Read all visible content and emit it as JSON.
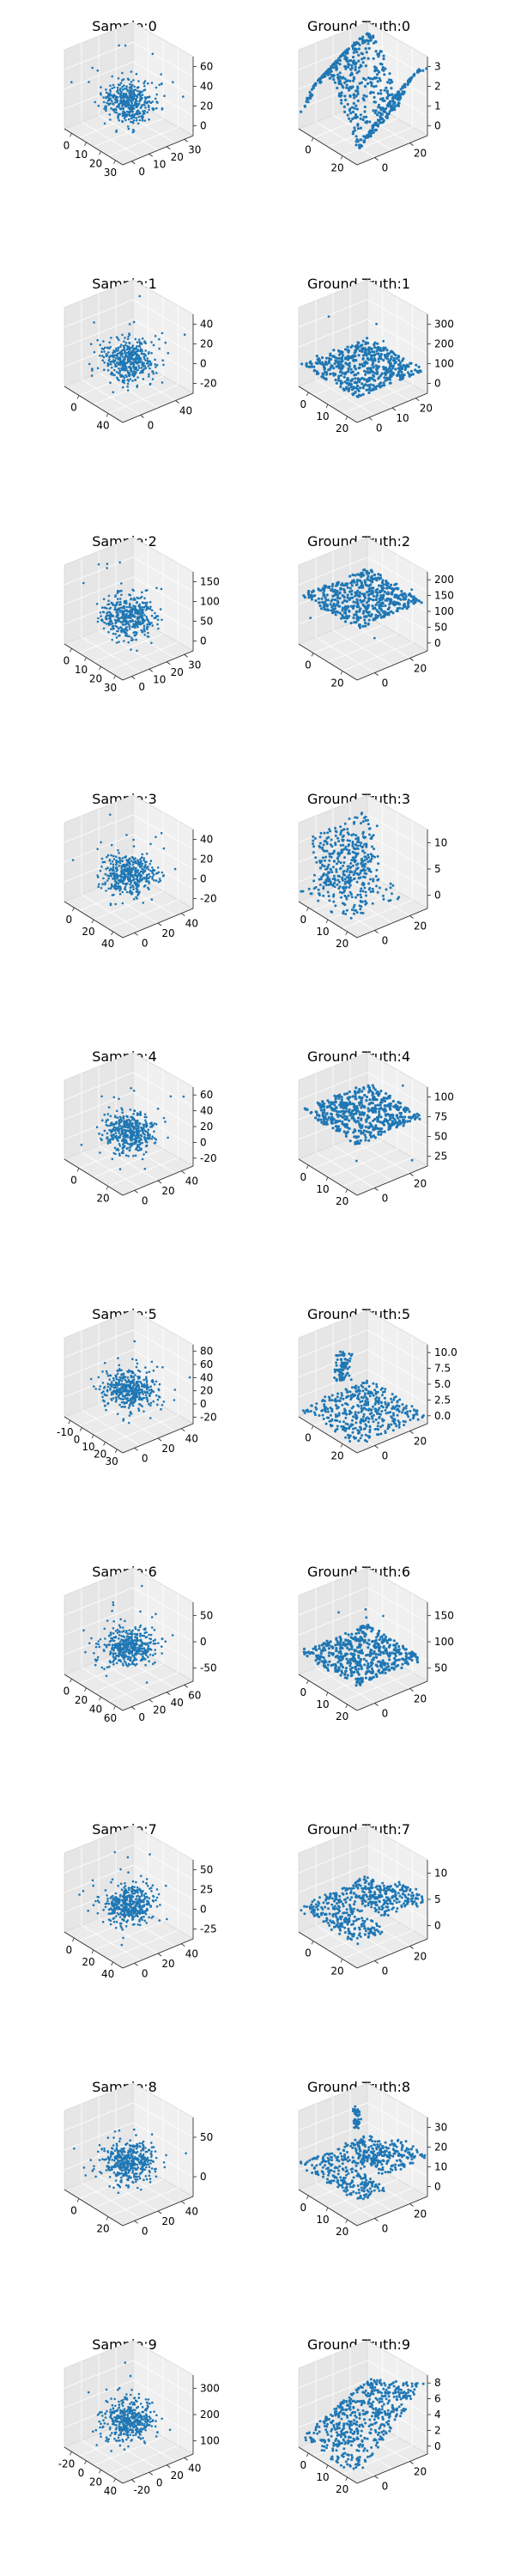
{
  "colors": {
    "series": "#1f77b4",
    "pane_back": "#f0f0f0",
    "pane_side": "#e6e6e6",
    "pane_floor": "#ebebeb",
    "grid": "#ffffff"
  },
  "chart_data": [
    {
      "type": "scatter3d",
      "title": "Sample:0",
      "distribution": "gaussian-cloud",
      "x_ticks": [
        "0",
        "10",
        "20",
        "30"
      ],
      "y_ticks": [
        "0",
        "10",
        "20",
        "30"
      ],
      "z_ticks": [
        "0",
        "20",
        "40",
        "60"
      ],
      "xlim": [
        -5,
        35
      ],
      "ylim": [
        -5,
        35
      ],
      "zlim": [
        -20,
        65
      ],
      "grid": true
    },
    {
      "type": "scatter3d",
      "title": "Ground Truth:0",
      "distribution": "folded-surface",
      "x_ticks": [
        "0",
        "20"
      ],
      "y_ticks": [
        "0",
        "20"
      ],
      "z_ticks": [
        "0",
        "1",
        "2",
        "3"
      ],
      "xlim": [
        0,
        30
      ],
      "ylim": [
        0,
        30
      ],
      "zlim": [
        -0.5,
        3.5
      ],
      "grid": true
    },
    {
      "type": "scatter3d",
      "title": "Sample:1",
      "distribution": "gaussian-cloud",
      "x_ticks": [
        "0",
        "40"
      ],
      "y_ticks": [
        "0",
        "40"
      ],
      "z_ticks": [
        "-20",
        "0",
        "20",
        "40"
      ],
      "xlim": [
        -20,
        50
      ],
      "ylim": [
        -20,
        50
      ],
      "zlim": [
        -40,
        50
      ],
      "grid": true
    },
    {
      "type": "scatter3d",
      "title": "Ground Truth:1",
      "distribution": "flat-plane",
      "x_ticks": [
        "0",
        "10",
        "20"
      ],
      "y_ticks": [
        "0",
        "10",
        "20"
      ],
      "z_ticks": [
        "0",
        "100",
        "200",
        "300"
      ],
      "xlim": [
        0,
        30
      ],
      "ylim": [
        0,
        30
      ],
      "zlim": [
        -50,
        330
      ],
      "grid": true
    },
    {
      "type": "scatter3d",
      "title": "Sample:2",
      "distribution": "gaussian-cloud",
      "x_ticks": [
        "0",
        "10",
        "20",
        "30"
      ],
      "y_ticks": [
        "0",
        "10",
        "20",
        "30"
      ],
      "z_ticks": [
        "0",
        "50",
        "100",
        "150"
      ],
      "xlim": [
        -5,
        35
      ],
      "ylim": [
        -5,
        35
      ],
      "zlim": [
        -60,
        160
      ],
      "grid": true
    },
    {
      "type": "scatter3d",
      "title": "Ground Truth:2",
      "distribution": "flat-plane-high",
      "x_ticks": [
        "0",
        "20"
      ],
      "y_ticks": [
        "0",
        "20"
      ],
      "z_ticks": [
        "0",
        "50",
        "100",
        "150",
        "200"
      ],
      "xlim": [
        0,
        30
      ],
      "ylim": [
        0,
        30
      ],
      "zlim": [
        -20,
        220
      ],
      "grid": true
    },
    {
      "type": "scatter3d",
      "title": "Sample:3",
      "distribution": "gaussian-cloud",
      "x_ticks": [
        "0",
        "20",
        "40"
      ],
      "y_ticks": [
        "0",
        "20",
        "40"
      ],
      "z_ticks": [
        "-20",
        "0",
        "20",
        "40"
      ],
      "xlim": [
        -10,
        50
      ],
      "ylim": [
        -10,
        50
      ],
      "zlim": [
        -30,
        50
      ],
      "grid": true
    },
    {
      "type": "scatter3d",
      "title": "Ground Truth:3",
      "distribution": "striped-wall",
      "x_ticks": [
        "0",
        "10",
        "20"
      ],
      "y_ticks": [
        "0",
        "20"
      ],
      "z_ticks": [
        "0",
        "5",
        "10"
      ],
      "xlim": [
        0,
        30
      ],
      "ylim": [
        0,
        30
      ],
      "zlim": [
        -2,
        14
      ],
      "grid": true
    },
    {
      "type": "scatter3d",
      "title": "Sample:4",
      "distribution": "gaussian-cloud",
      "x_ticks": [
        "0",
        "20"
      ],
      "y_ticks": [
        "0",
        "20",
        "40"
      ],
      "z_ticks": [
        "-20",
        "0",
        "20",
        "40",
        "60"
      ],
      "xlim": [
        -15,
        40
      ],
      "ylim": [
        -10,
        50
      ],
      "zlim": [
        -30,
        70
      ],
      "grid": true
    },
    {
      "type": "scatter3d",
      "title": "Ground Truth:4",
      "distribution": "flat-plane-high",
      "x_ticks": [
        "0",
        "10",
        "20"
      ],
      "y_ticks": [
        "0",
        "20"
      ],
      "z_ticks": [
        "25",
        "50",
        "75",
        "100"
      ],
      "xlim": [
        0,
        30
      ],
      "ylim": [
        0,
        30
      ],
      "zlim": [
        0,
        115
      ],
      "grid": true
    },
    {
      "type": "scatter3d",
      "title": "Sample:5",
      "distribution": "gaussian-cloud",
      "x_ticks": [
        "-10",
        "0",
        "10",
        "20",
        "30"
      ],
      "y_ticks": [
        "0",
        "20",
        "40"
      ],
      "z_ticks": [
        "-20",
        "0",
        "20",
        "40",
        "60",
        "80"
      ],
      "xlim": [
        -15,
        35
      ],
      "ylim": [
        -10,
        50
      ],
      "zlim": [
        -30,
        90
      ],
      "grid": true
    },
    {
      "type": "scatter3d",
      "title": "Ground Truth:5",
      "distribution": "plane-with-block",
      "x_ticks": [
        "0",
        "20"
      ],
      "y_ticks": [
        "0",
        "20"
      ],
      "z_ticks": [
        "0.0",
        "2.5",
        "5.0",
        "7.5",
        "10.0"
      ],
      "xlim": [
        0,
        30
      ],
      "ylim": [
        0,
        30
      ],
      "zlim": [
        -1,
        11
      ],
      "grid": true
    },
    {
      "type": "scatter3d",
      "title": "Sample:6",
      "distribution": "gaussian-cloud",
      "x_ticks": [
        "0",
        "20",
        "40",
        "60"
      ],
      "y_ticks": [
        "0",
        "20",
        "40",
        "60"
      ],
      "z_ticks": [
        "-50",
        "0",
        "50"
      ],
      "xlim": [
        -10,
        70
      ],
      "ylim": [
        -10,
        70
      ],
      "zlim": [
        -80,
        70
      ],
      "grid": true
    },
    {
      "type": "scatter3d",
      "title": "Ground Truth:6",
      "distribution": "flat-plane",
      "x_ticks": [
        "0",
        "10",
        "20"
      ],
      "y_ticks": [
        "0",
        "20"
      ],
      "z_ticks": [
        "50",
        "100",
        "150"
      ],
      "xlim": [
        0,
        30
      ],
      "ylim": [
        0,
        30
      ],
      "zlim": [
        0,
        170
      ],
      "grid": true
    },
    {
      "type": "scatter3d",
      "title": "Sample:7",
      "distribution": "gaussian-cloud",
      "x_ticks": [
        "0",
        "20",
        "40"
      ],
      "y_ticks": [
        "0",
        "20",
        "40"
      ],
      "z_ticks": [
        "-25",
        "0",
        "25",
        "50"
      ],
      "xlim": [
        -15,
        50
      ],
      "ylim": [
        -10,
        50
      ],
      "zlim": [
        -40,
        60
      ],
      "grid": true
    },
    {
      "type": "scatter3d",
      "title": "Ground Truth:7",
      "distribution": "terrain",
      "x_ticks": [
        "0",
        "20"
      ],
      "y_ticks": [
        "0",
        "20"
      ],
      "z_ticks": [
        "0",
        "5",
        "10"
      ],
      "xlim": [
        0,
        30
      ],
      "ylim": [
        0,
        30
      ],
      "zlim": [
        -2,
        13
      ],
      "grid": true
    },
    {
      "type": "scatter3d",
      "title": "Sample:8",
      "distribution": "gaussian-cloud",
      "x_ticks": [
        "0",
        "20"
      ],
      "y_ticks": [
        "0",
        "20",
        "40"
      ],
      "z_ticks": [
        "0",
        "50"
      ],
      "xlim": [
        -15,
        40
      ],
      "ylim": [
        -10,
        50
      ],
      "zlim": [
        -40,
        80
      ],
      "grid": true
    },
    {
      "type": "scatter3d",
      "title": "Ground Truth:8",
      "distribution": "terrain-with-column",
      "x_ticks": [
        "0",
        "10",
        "20"
      ],
      "y_ticks": [
        "0",
        "20"
      ],
      "z_ticks": [
        "0",
        "10",
        "20",
        "30"
      ],
      "xlim": [
        0,
        30
      ],
      "ylim": [
        0,
        30
      ],
      "zlim": [
        -5,
        38
      ],
      "grid": true
    },
    {
      "type": "scatter3d",
      "title": "Sample:9",
      "distribution": "gaussian-cloud",
      "x_ticks": [
        "-20",
        "0",
        "20",
        "40"
      ],
      "y_ticks": [
        "-20",
        "0",
        "20",
        "40"
      ],
      "z_ticks": [
        "100",
        "200",
        "300"
      ],
      "xlim": [
        -30,
        50
      ],
      "ylim": [
        -30,
        50
      ],
      "zlim": [
        -20,
        360
      ],
      "grid": true
    },
    {
      "type": "scatter3d",
      "title": "Ground Truth:9",
      "distribution": "ramp",
      "x_ticks": [
        "0",
        "10",
        "20"
      ],
      "y_ticks": [
        "0",
        "20"
      ],
      "z_ticks": [
        "0",
        "2",
        "4",
        "6",
        "8"
      ],
      "xlim": [
        0,
        30
      ],
      "ylim": [
        0,
        30
      ],
      "zlim": [
        -1,
        9
      ],
      "grid": true
    }
  ]
}
